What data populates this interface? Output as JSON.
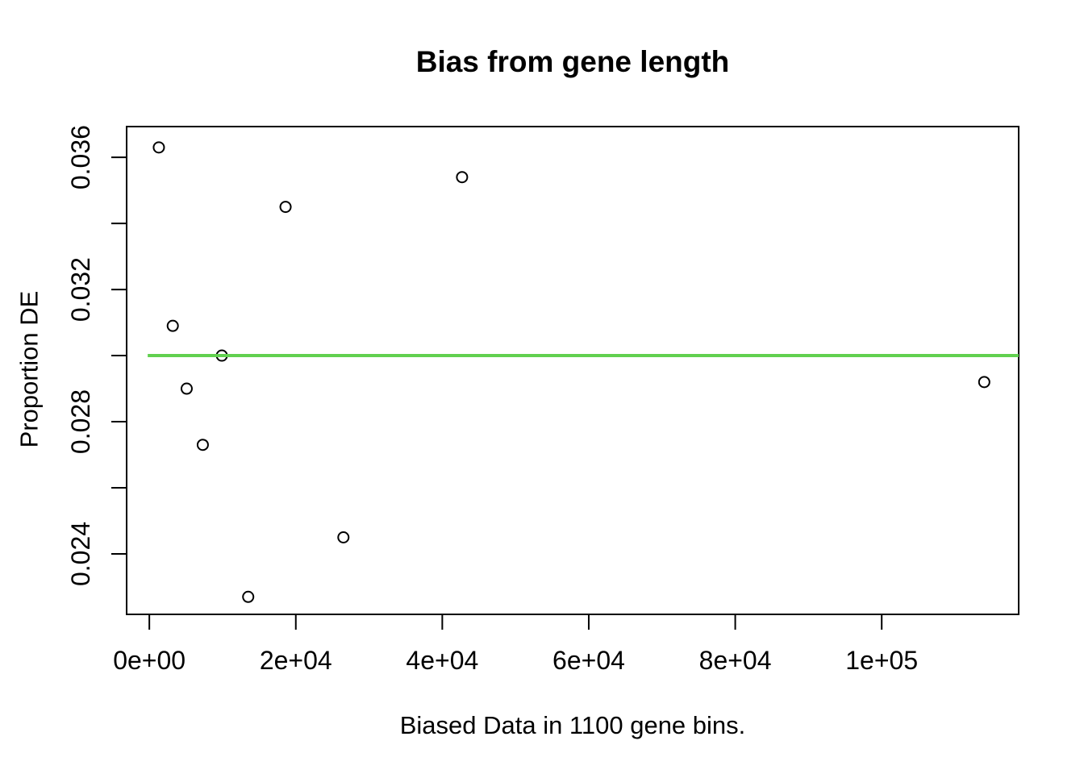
{
  "title": "Bias from gene length",
  "chart_data": {
    "type": "scatter",
    "title": "Bias from gene length",
    "xlabel": "Biased Data in 1100 gene bins.",
    "ylabel": "Proportion DE",
    "points": [
      {
        "x": 1300,
        "y": 0.0363
      },
      {
        "x": 3200,
        "y": 0.0309
      },
      {
        "x": 5100,
        "y": 0.029
      },
      {
        "x": 7300,
        "y": 0.0273
      },
      {
        "x": 9900,
        "y": 0.03
      },
      {
        "x": 13500,
        "y": 0.0227
      },
      {
        "x": 18600,
        "y": 0.0345
      },
      {
        "x": 26500,
        "y": 0.0245
      },
      {
        "x": 42700,
        "y": 0.0354
      },
      {
        "x": 114000,
        "y": 0.0292
      }
    ],
    "hline": {
      "y": 0.03,
      "color": "#61D04F"
    },
    "x_ticks": [
      {
        "value": 0,
        "label": "0e+00"
      },
      {
        "value": 20000,
        "label": "2e+04"
      },
      {
        "value": 40000,
        "label": "4e+04"
      },
      {
        "value": 60000,
        "label": "6e+04"
      },
      {
        "value": 80000,
        "label": "8e+04"
      },
      {
        "value": 100000,
        "label": "1e+05"
      }
    ],
    "y_ticks": [
      {
        "value": 0.024,
        "label": "0.024"
      },
      {
        "value": 0.026,
        "label": ""
      },
      {
        "value": 0.028,
        "label": "0.028"
      },
      {
        "value": 0.03,
        "label": ""
      },
      {
        "value": 0.032,
        "label": "0.032"
      },
      {
        "value": 0.034,
        "label": ""
      },
      {
        "value": 0.036,
        "label": "0.036"
      }
    ],
    "xlim": [
      -3100,
      118700
    ],
    "ylim": [
      0.02217,
      0.03693
    ],
    "grid": false,
    "legend": null,
    "marker": "open-circle",
    "point_color": "#000000",
    "axis_color": "#000000",
    "background": "#FFFFFF"
  }
}
